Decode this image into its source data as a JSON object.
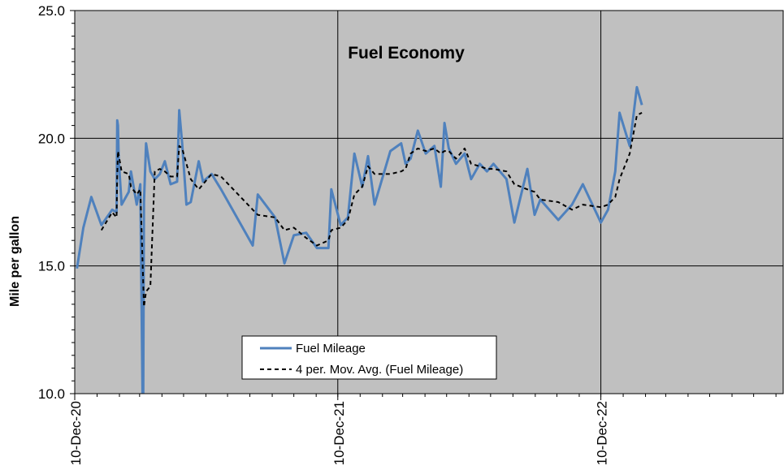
{
  "chart_data": {
    "type": "line",
    "title": "Fuel Economy",
    "xlabel": "",
    "ylabel": "Mile per gallon",
    "ylim": [
      10.0,
      25.0
    ],
    "yticks": [
      "10.0",
      "15.0",
      "20.0",
      "25.0"
    ],
    "xlim": [
      "2020-12-10",
      "2023-08-20"
    ],
    "xticks": [
      {
        "date": "2020-12-10",
        "label": "10-Dec-20"
      },
      {
        "date": "2021-12-10",
        "label": "10-Dec-21"
      },
      {
        "date": "2022-12-10",
        "label": "10-Dec-22"
      }
    ],
    "grid": true,
    "legend_position": "bottom-center",
    "background_color": "#c0c0c0",
    "series": [
      {
        "name": "Fuel Mileage",
        "color": "#4f81bd",
        "style": "solid",
        "points": [
          [
            "2020-12-13",
            14.9
          ],
          [
            "2020-12-22",
            16.5
          ],
          [
            "2021-01-02",
            17.7
          ],
          [
            "2021-01-16",
            16.6
          ],
          [
            "2021-01-31",
            17.2
          ],
          [
            "2021-02-06",
            17.1
          ],
          [
            "2021-02-07",
            20.7
          ],
          [
            "2021-02-08",
            20.5
          ],
          [
            "2021-02-09",
            19.2
          ],
          [
            "2021-02-13",
            17.4
          ],
          [
            "2021-02-23",
            17.9
          ],
          [
            "2021-02-26",
            18.7
          ],
          [
            "2021-03-06",
            17.4
          ],
          [
            "2021-03-11",
            18.2
          ],
          [
            "2021-03-14",
            10.0
          ],
          [
            "2021-03-15",
            9.8
          ],
          [
            "2021-03-16",
            17.5
          ],
          [
            "2021-03-19",
            19.8
          ],
          [
            "2021-03-25",
            18.7
          ],
          [
            "2021-03-31",
            18.4
          ],
          [
            "2021-04-07",
            18.6
          ],
          [
            "2021-04-14",
            19.1
          ],
          [
            "2021-04-22",
            18.2
          ],
          [
            "2021-05-01",
            18.3
          ],
          [
            "2021-05-04",
            21.1
          ],
          [
            "2021-05-08",
            19.8
          ],
          [
            "2021-05-14",
            17.4
          ],
          [
            "2021-05-20",
            17.5
          ],
          [
            "2021-05-31",
            19.1
          ],
          [
            "2021-06-06",
            18.3
          ],
          [
            "2021-06-18",
            18.6
          ],
          [
            "2021-07-01",
            18.0
          ],
          [
            "2021-08-14",
            15.8
          ],
          [
            "2021-08-21",
            17.8
          ],
          [
            "2021-09-14",
            16.9
          ],
          [
            "2021-09-27",
            15.1
          ],
          [
            "2021-10-10",
            16.2
          ],
          [
            "2021-10-27",
            16.3
          ],
          [
            "2021-11-11",
            15.7
          ],
          [
            "2021-11-27",
            15.7
          ],
          [
            "2021-12-01",
            18.0
          ],
          [
            "2021-12-14",
            16.6
          ],
          [
            "2021-12-24",
            16.9
          ],
          [
            "2022-01-02",
            19.4
          ],
          [
            "2022-01-13",
            18.1
          ],
          [
            "2022-01-21",
            19.3
          ],
          [
            "2022-01-30",
            17.4
          ],
          [
            "2022-02-21",
            19.5
          ],
          [
            "2022-03-08",
            19.8
          ],
          [
            "2022-03-14",
            19.0
          ],
          [
            "2022-03-21",
            19.2
          ],
          [
            "2022-03-31",
            20.3
          ],
          [
            "2022-04-11",
            19.4
          ],
          [
            "2022-04-23",
            19.7
          ],
          [
            "2022-05-02",
            18.1
          ],
          [
            "2022-05-07",
            20.6
          ],
          [
            "2022-05-13",
            19.6
          ],
          [
            "2022-05-23",
            19.0
          ],
          [
            "2022-06-04",
            19.4
          ],
          [
            "2022-06-13",
            18.4
          ],
          [
            "2022-06-25",
            19.0
          ],
          [
            "2022-07-05",
            18.7
          ],
          [
            "2022-07-14",
            19.0
          ],
          [
            "2022-08-01",
            18.4
          ],
          [
            "2022-08-12",
            16.7
          ],
          [
            "2022-08-30",
            18.8
          ],
          [
            "2022-09-09",
            17.0
          ],
          [
            "2022-09-17",
            17.6
          ],
          [
            "2022-10-12",
            16.8
          ],
          [
            "2022-10-31",
            17.4
          ],
          [
            "2022-11-15",
            18.2
          ],
          [
            "2022-12-10",
            16.7
          ],
          [
            "2022-12-20",
            17.2
          ],
          [
            "2022-12-30",
            18.7
          ],
          [
            "2023-01-05",
            21.0
          ],
          [
            "2023-01-19",
            19.7
          ],
          [
            "2023-01-29",
            22.0
          ],
          [
            "2023-02-05",
            21.3
          ]
        ]
      },
      {
        "name": "4 per. Mov. Avg. (Fuel Mileage)",
        "color": "#000000",
        "style": "dashed",
        "points": [
          [
            "2021-01-16",
            16.4
          ],
          [
            "2021-01-31",
            17.1
          ],
          [
            "2021-02-06",
            16.9
          ],
          [
            "2021-02-07",
            18.6
          ],
          [
            "2021-02-08",
            19.5
          ],
          [
            "2021-02-13",
            18.7
          ],
          [
            "2021-02-23",
            18.6
          ],
          [
            "2021-02-26",
            18.1
          ],
          [
            "2021-03-06",
            17.8
          ],
          [
            "2021-03-11",
            18.0
          ],
          [
            "2021-03-16",
            13.4
          ],
          [
            "2021-03-19",
            14.0
          ],
          [
            "2021-03-25",
            14.2
          ],
          [
            "2021-03-31",
            18.7
          ],
          [
            "2021-04-07",
            18.8
          ],
          [
            "2021-04-14",
            18.7
          ],
          [
            "2021-04-22",
            18.5
          ],
          [
            "2021-05-01",
            18.5
          ],
          [
            "2021-05-04",
            19.7
          ],
          [
            "2021-05-08",
            19.6
          ],
          [
            "2021-05-14",
            19.0
          ],
          [
            "2021-05-20",
            18.4
          ],
          [
            "2021-05-31",
            18.0
          ],
          [
            "2021-06-06",
            18.2
          ],
          [
            "2021-06-18",
            18.6
          ],
          [
            "2021-07-01",
            18.5
          ],
          [
            "2021-08-14",
            17.2
          ],
          [
            "2021-08-21",
            17.0
          ],
          [
            "2021-09-14",
            16.9
          ],
          [
            "2021-09-27",
            16.4
          ],
          [
            "2021-10-10",
            16.5
          ],
          [
            "2021-10-27",
            16.1
          ],
          [
            "2021-11-11",
            15.8
          ],
          [
            "2021-11-27",
            16.0
          ],
          [
            "2021-12-01",
            16.4
          ],
          [
            "2021-12-14",
            16.5
          ],
          [
            "2021-12-24",
            16.8
          ],
          [
            "2022-01-02",
            17.8
          ],
          [
            "2022-01-13",
            18.1
          ],
          [
            "2022-01-21",
            18.9
          ],
          [
            "2022-01-30",
            18.6
          ],
          [
            "2022-02-21",
            18.6
          ],
          [
            "2022-03-08",
            18.7
          ],
          [
            "2022-03-14",
            18.8
          ],
          [
            "2022-03-21",
            19.4
          ],
          [
            "2022-03-31",
            19.6
          ],
          [
            "2022-04-11",
            19.5
          ],
          [
            "2022-04-23",
            19.6
          ],
          [
            "2022-05-02",
            19.4
          ],
          [
            "2022-05-07",
            19.5
          ],
          [
            "2022-05-13",
            19.5
          ],
          [
            "2022-05-23",
            19.2
          ],
          [
            "2022-06-04",
            19.6
          ],
          [
            "2022-06-13",
            19.0
          ],
          [
            "2022-06-25",
            18.9
          ],
          [
            "2022-07-05",
            18.8
          ],
          [
            "2022-07-14",
            18.8
          ],
          [
            "2022-08-01",
            18.7
          ],
          [
            "2022-08-12",
            18.2
          ],
          [
            "2022-08-30",
            18.0
          ],
          [
            "2022-09-09",
            17.9
          ],
          [
            "2022-09-17",
            17.6
          ],
          [
            "2022-10-12",
            17.5
          ],
          [
            "2022-10-31",
            17.2
          ],
          [
            "2022-11-15",
            17.4
          ],
          [
            "2022-12-10",
            17.3
          ],
          [
            "2022-12-20",
            17.4
          ],
          [
            "2022-12-30",
            17.7
          ],
          [
            "2023-01-05",
            18.4
          ],
          [
            "2023-01-19",
            19.4
          ],
          [
            "2023-01-29",
            20.9
          ],
          [
            "2023-02-05",
            21.0
          ]
        ]
      }
    ]
  }
}
